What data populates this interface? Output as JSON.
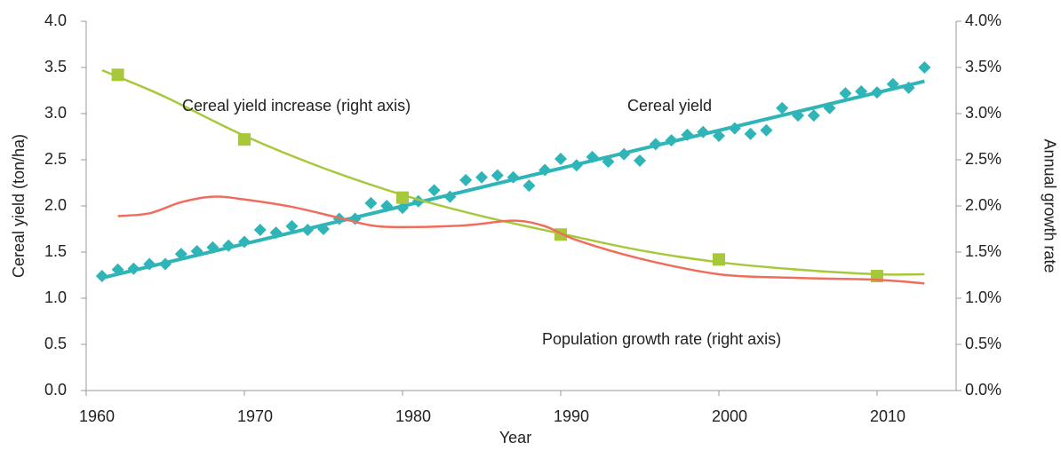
{
  "chart_data": {
    "type": "line",
    "xlabel": "Year",
    "ylabel": "Cereal yield (ton/ha)",
    "y2label": "Annual growth rate",
    "xlim": [
      1960,
      2015
    ],
    "xticks": [
      1960,
      1970,
      1980,
      1990,
      2000,
      2010
    ],
    "ylim": [
      0,
      4
    ],
    "yticks": [
      {
        "value": 0,
        "label": "0.0"
      },
      {
        "value": 0.5,
        "label": "0.5"
      },
      {
        "value": 1,
        "label": "1.0"
      },
      {
        "value": 1.5,
        "label": "1.5"
      },
      {
        "value": 2,
        "label": "2.0"
      },
      {
        "value": 2.5,
        "label": "2.5"
      },
      {
        "value": 3,
        "label": "3.0"
      },
      {
        "value": 3.5,
        "label": "3.5"
      },
      {
        "value": 4,
        "label": "4.0"
      }
    ],
    "y2lim": [
      0,
      4
    ],
    "y2ticks": [
      {
        "value": 0,
        "label": "0.0%"
      },
      {
        "value": 0.5,
        "label": "0.5%"
      },
      {
        "value": 1,
        "label": "1.0%"
      },
      {
        "value": 1.5,
        "label": "1.5%"
      },
      {
        "value": 2,
        "label": "2.0%"
      },
      {
        "value": 2.5,
        "label": "2.5%"
      },
      {
        "value": 3,
        "label": "3.0%"
      },
      {
        "value": 3.5,
        "label": "3.5%"
      },
      {
        "value": 4,
        "label": "4.0%"
      }
    ],
    "series": [
      {
        "name": "Cereal yield",
        "color": "#2fb5b7",
        "marker": "diamond",
        "line": false,
        "x": [
          1961,
          1962,
          1963,
          1964,
          1965,
          1966,
          1967,
          1968,
          1969,
          1970,
          1971,
          1972,
          1973,
          1974,
          1975,
          1976,
          1977,
          1978,
          1979,
          1980,
          1981,
          1982,
          1983,
          1984,
          1985,
          1986,
          1987,
          1988,
          1989,
          1990,
          1991,
          1992,
          1993,
          1994,
          1995,
          1996,
          1997,
          1998,
          1999,
          2000,
          2001,
          2002,
          2003,
          2004,
          2005,
          2006,
          2007,
          2008,
          2009,
          2010,
          2011,
          2012,
          2013
        ],
        "values": [
          1.24,
          1.31,
          1.32,
          1.37,
          1.37,
          1.48,
          1.51,
          1.55,
          1.57,
          1.61,
          1.74,
          1.71,
          1.78,
          1.74,
          1.75,
          1.86,
          1.86,
          2.03,
          2.0,
          1.98,
          2.05,
          2.17,
          2.1,
          2.28,
          2.31,
          2.33,
          2.31,
          2.22,
          2.39,
          2.51,
          2.44,
          2.53,
          2.48,
          2.56,
          2.49,
          2.67,
          2.71,
          2.77,
          2.8,
          2.76,
          2.84,
          2.78,
          2.82,
          3.06,
          2.98,
          2.98,
          3.06,
          3.22,
          3.24,
          3.23,
          3.32,
          3.28,
          3.5
        ]
      },
      {
        "color": "#2fb5b7",
        "marker": "none",
        "line": true,
        "width": 4,
        "x": [
          1961,
          2013
        ],
        "values": [
          1.22,
          3.35
        ]
      },
      {
        "name": "Cereal yield increase (right axis)",
        "color": "#a8c83c",
        "marker": "none",
        "line": true,
        "width": 2.5,
        "axis": "y2",
        "x": [
          1961,
          1962,
          1965,
          1970,
          1975,
          1980,
          1985,
          1990,
          1995,
          2000,
          2005,
          2010,
          2013
        ],
        "values": [
          3.47,
          3.4,
          3.18,
          2.76,
          2.41,
          2.12,
          1.89,
          1.7,
          1.52,
          1.39,
          1.31,
          1.26,
          1.26
        ]
      },
      {
        "color": "#a8c83c",
        "marker": "square",
        "line": false,
        "axis": "y2",
        "x": [
          1962,
          1970,
          1980,
          1990,
          2000,
          2010
        ],
        "values": [
          3.42,
          2.72,
          2.09,
          1.69,
          1.42,
          1.24
        ]
      },
      {
        "name": "Population growth rate (right axis)",
        "color": "#f06d5b",
        "marker": "none",
        "line": true,
        "width": 2.5,
        "axis": "y2",
        "x": [
          1962,
          1964,
          1966,
          1968,
          1970,
          1973,
          1976,
          1978,
          1980,
          1984,
          1987,
          1989,
          1991,
          1995,
          2000,
          2005,
          2010,
          2013
        ],
        "values": [
          1.89,
          1.92,
          2.04,
          2.1,
          2.07,
          1.99,
          1.87,
          1.79,
          1.77,
          1.79,
          1.84,
          1.78,
          1.63,
          1.43,
          1.26,
          1.22,
          1.2,
          1.16
        ]
      }
    ]
  }
}
